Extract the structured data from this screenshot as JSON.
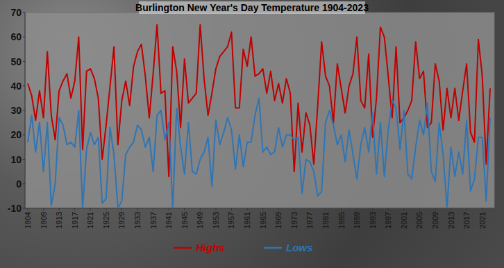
{
  "chart_data": {
    "type": "line",
    "title": "Burlington New Year's Day Temperature 1904-2023",
    "categories": [
      "1904",
      null,
      null,
      null,
      "1909",
      null,
      null,
      null,
      "1913",
      null,
      null,
      null,
      "1917",
      null,
      null,
      null,
      "1921",
      null,
      null,
      null,
      "1925",
      null,
      null,
      null,
      "1929",
      null,
      null,
      null,
      "1933",
      null,
      null,
      null,
      "1937",
      null,
      null,
      null,
      "1941",
      null,
      null,
      null,
      "1945",
      null,
      null,
      null,
      "1949",
      null,
      null,
      null,
      "1953",
      null,
      null,
      null,
      "1957",
      null,
      null,
      null,
      "1961",
      null,
      null,
      null,
      "1965",
      null,
      null,
      null,
      "1969",
      null,
      null,
      null,
      "1973",
      null,
      null,
      null,
      "1977",
      null,
      null,
      null,
      "1981",
      null,
      null,
      null,
      "1985",
      null,
      null,
      null,
      "1989",
      null,
      null,
      null,
      "1993",
      null,
      null,
      null,
      "1997",
      null,
      null,
      null,
      "2001",
      null,
      null,
      null,
      "2005",
      null,
      null,
      null,
      "2009",
      null,
      null,
      null,
      "2013",
      null,
      null,
      null,
      "2017",
      null,
      null,
      null,
      "2021",
      null,
      null
    ],
    "series": [
      {
        "name": "Highs",
        "color": "#c00000",
        "values": [
          41,
          36,
          26,
          38,
          27,
          54,
          28,
          18,
          38,
          42,
          45,
          35,
          42,
          60,
          14,
          46,
          47,
          43,
          35,
          10,
          24,
          40,
          56,
          16,
          34,
          42,
          32,
          48,
          54,
          57,
          44,
          27,
          45,
          65,
          37,
          38,
          3,
          56,
          46,
          23,
          51,
          33,
          35,
          37,
          65,
          43,
          28,
          37,
          47,
          52,
          54,
          56,
          62,
          31,
          31,
          55,
          48,
          60,
          44,
          45,
          47,
          37,
          46,
          34,
          41,
          33,
          43,
          37,
          5,
          33,
          13,
          29,
          24,
          8,
          32,
          58,
          44,
          40,
          25,
          49,
          39,
          29,
          40,
          45,
          60,
          34,
          31,
          53,
          19,
          35,
          64,
          60,
          44,
          27,
          56,
          25,
          27,
          30,
          34,
          58,
          43,
          46,
          23,
          25,
          49,
          42,
          22,
          39,
          27,
          39,
          26,
          38,
          49,
          21,
          17,
          59,
          44,
          8,
          39
        ]
      },
      {
        "name": "Lows",
        "color": "#2e75b6",
        "values": [
          17,
          28,
          13,
          25,
          5,
          25,
          -9,
          0,
          27,
          24,
          16,
          17,
          15,
          30,
          -10,
          14,
          21,
          16,
          19,
          -8,
          -6,
          23,
          12,
          -10,
          -7,
          12,
          15,
          17,
          24,
          22,
          15,
          19,
          5,
          28,
          30,
          18,
          25,
          -10,
          31,
          15,
          4,
          25,
          5,
          4,
          10,
          13,
          19,
          -1,
          26,
          16,
          21,
          27,
          22,
          6,
          20,
          7,
          17,
          17,
          28,
          35,
          13,
          15,
          12,
          13,
          23,
          15,
          20,
          20,
          18,
          19,
          -4,
          10,
          9,
          5,
          -5,
          -3,
          25,
          30,
          24,
          16,
          20,
          9,
          22,
          12,
          2,
          16,
          23,
          13,
          29,
          4,
          25,
          3,
          22,
          34,
          31,
          14,
          30,
          4,
          2,
          15,
          26,
          20,
          33,
          5,
          1,
          25,
          12,
          -10,
          15,
          3,
          13,
          4,
          26,
          -3,
          2,
          19,
          19,
          -7,
          27
        ]
      }
    ],
    "ylim": [
      -10,
      70
    ],
    "yticks": [
      -10,
      0,
      10,
      20,
      30,
      40,
      50,
      60,
      70
    ],
    "grid": false,
    "legend": "bottom"
  }
}
